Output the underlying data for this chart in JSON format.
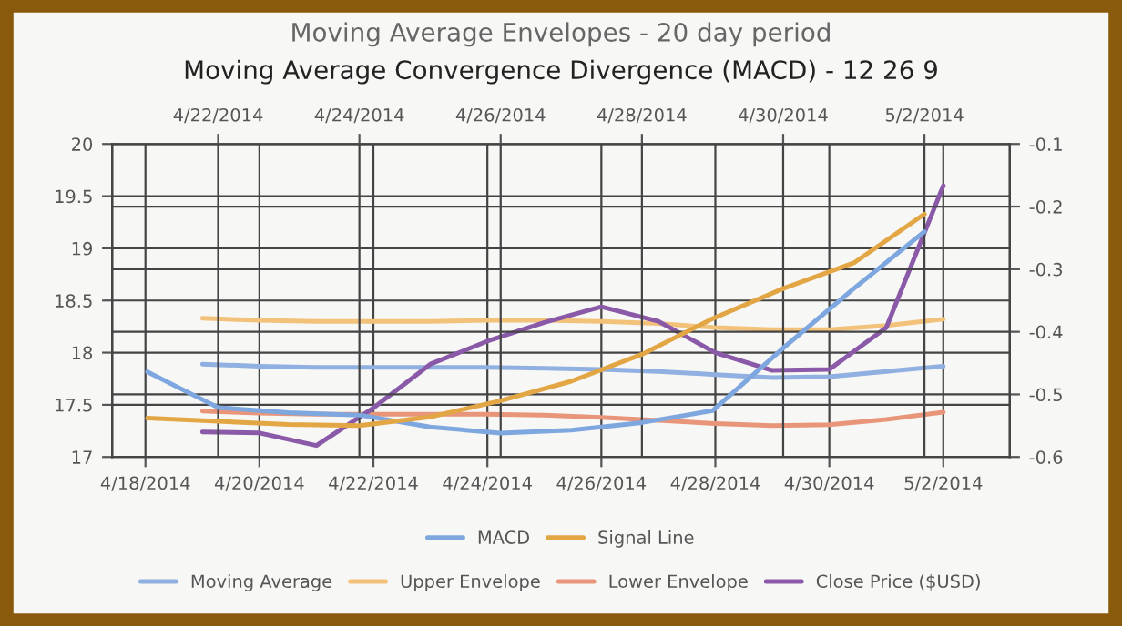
{
  "chart_data": [
    {
      "type": "line",
      "title": "Moving Average Envelopes - 20 day period",
      "x": [
        "2014-04-19",
        "2014-04-20",
        "2014-04-21",
        "2014-04-22",
        "2014-04-23",
        "2014-04-24",
        "2014-04-25",
        "2014-04-26",
        "2014-04-27",
        "2014-04-28",
        "2014-04-29",
        "2014-04-30",
        "2014-05-01",
        "2014-05-02"
      ],
      "series": [
        {
          "name": "Moving Average",
          "color": "#8fb0e0",
          "values": [
            17.89,
            17.87,
            17.86,
            17.86,
            17.86,
            17.86,
            17.85,
            17.84,
            17.82,
            17.79,
            17.76,
            17.77,
            17.82,
            17.87
          ]
        },
        {
          "name": "Upper Envelope",
          "color": "#f3c27a",
          "values": [
            18.33,
            18.31,
            18.3,
            18.3,
            18.3,
            18.31,
            18.31,
            18.3,
            18.28,
            18.24,
            18.22,
            18.22,
            18.26,
            18.32
          ]
        },
        {
          "name": "Lower Envelope",
          "color": "#e8957a",
          "values": [
            17.44,
            17.42,
            17.41,
            17.41,
            17.41,
            17.41,
            17.4,
            17.38,
            17.35,
            17.32,
            17.3,
            17.31,
            17.36,
            17.43
          ]
        },
        {
          "name": "Close Price ($USD)",
          "color": "#8a5aa8",
          "values": [
            17.24,
            17.23,
            17.11,
            17.47,
            17.89,
            18.11,
            18.29,
            18.44,
            18.3,
            18.0,
            17.83,
            17.84,
            18.24,
            19.6
          ]
        }
      ],
      "xlim": [
        "2014-04-17T10:00",
        "2014-05-03T04:00"
      ],
      "xticks": [
        {
          "value": "2014-04-18",
          "label": "4/18/2014"
        },
        {
          "value": "2014-04-20",
          "label": "4/20/2014"
        },
        {
          "value": "2014-04-22",
          "label": "4/22/2014"
        },
        {
          "value": "2014-04-24",
          "label": "4/24/2014"
        },
        {
          "value": "2014-04-26",
          "label": "4/26/2014"
        },
        {
          "value": "2014-04-28",
          "label": "4/28/2014"
        },
        {
          "value": "2014-04-30",
          "label": "4/30/2014"
        },
        {
          "value": "2014-05-02",
          "label": "5/2/2014"
        }
      ],
      "ylim": [
        17,
        20
      ],
      "yticks": [
        17,
        17.5,
        18,
        18.5,
        19,
        19.5,
        20
      ],
      "grid": true,
      "legend": "bottom"
    },
    {
      "type": "line",
      "title": "Moving Average Convergence Divergence (MACD) - 12 26 9",
      "x": [
        "2014-04-21",
        "2014-04-22",
        "2014-04-23",
        "2014-04-24",
        "2014-04-25",
        "2014-04-26",
        "2014-04-27",
        "2014-04-28",
        "2014-04-29",
        "2014-04-30",
        "2014-05-01",
        "2014-05-02"
      ],
      "series": [
        {
          "name": "MACD",
          "color": "#7ea6df",
          "values": [
            -0.464,
            -0.521,
            -0.529,
            -0.533,
            -0.552,
            -0.562,
            -0.557,
            -0.545,
            -0.526,
            -0.426,
            -0.331,
            -0.24
          ]
        },
        {
          "name": "Signal Line",
          "color": "#e3a645",
          "values": [
            -0.538,
            -0.543,
            -0.548,
            -0.55,
            -0.536,
            -0.51,
            -0.479,
            -0.436,
            -0.379,
            -0.331,
            -0.29,
            -0.212
          ]
        }
      ],
      "xlim": [
        "2014-04-20T12:00",
        "2014-05-03T05:00"
      ],
      "xticks": [
        {
          "value": "2014-04-22",
          "label": "4/22/2014"
        },
        {
          "value": "2014-04-24",
          "label": "4/24/2014"
        },
        {
          "value": "2014-04-26",
          "label": "4/26/2014"
        },
        {
          "value": "2014-04-28",
          "label": "4/28/2014"
        },
        {
          "value": "2014-04-30",
          "label": "4/30/2014"
        },
        {
          "value": "2014-05-02",
          "label": "5/2/2014"
        }
      ],
      "ylim": [
        -0.6,
        -0.1
      ],
      "yticks": [
        -0.6,
        -0.5,
        -0.4,
        -0.3,
        -0.2,
        -0.1
      ],
      "grid": true,
      "legend": "bottom"
    }
  ]
}
